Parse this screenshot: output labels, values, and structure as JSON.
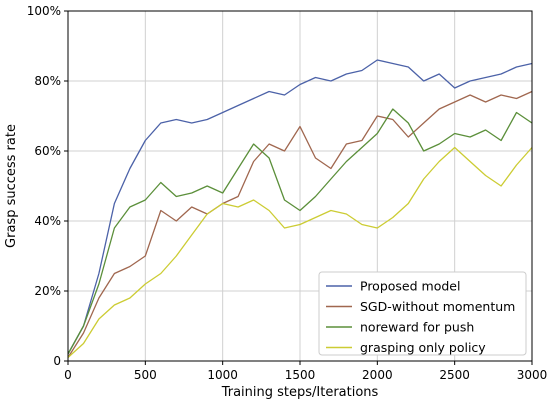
{
  "chart_data": {
    "type": "line",
    "xlabel": "Training steps/Iterations",
    "ylabel": "Grasp success rate",
    "xlim": [
      0,
      3000
    ],
    "ylim": [
      0,
      100
    ],
    "x_ticks": [
      0,
      500,
      1000,
      1500,
      2000,
      2500,
      3000
    ],
    "y_ticks": [
      0,
      20,
      40,
      60,
      80,
      100
    ],
    "x_tick_labels": [
      "0",
      "500",
      "1000",
      "1500",
      "2000",
      "2500",
      "3000"
    ],
    "y_tick_labels": [
      "0",
      "20%",
      "40%",
      "60%",
      "80%",
      "100%"
    ],
    "grid": true,
    "legend_position": "bottom-right",
    "x": [
      0,
      100,
      200,
      300,
      400,
      500,
      600,
      700,
      800,
      900,
      1000,
      1100,
      1200,
      1300,
      1400,
      1500,
      1600,
      1700,
      1800,
      1900,
      2000,
      2100,
      2200,
      2300,
      2400,
      2500,
      2600,
      2700,
      2800,
      2900,
      3000
    ],
    "series": [
      {
        "name": "Proposed model",
        "color": "#4c62a8",
        "values": [
          2,
          10,
          25,
          45,
          55,
          63,
          68,
          69,
          68,
          69,
          71,
          73,
          75,
          77,
          76,
          79,
          81,
          80,
          82,
          83,
          86,
          85,
          84,
          80,
          82,
          78,
          80,
          81,
          82,
          84,
          85
        ]
      },
      {
        "name": "SGD-without momentum",
        "color": "#a0674f",
        "values": [
          1,
          8,
          18,
          25,
          27,
          30,
          43,
          40,
          44,
          42,
          45,
          47,
          57,
          62,
          60,
          67,
          58,
          55,
          62,
          63,
          70,
          69,
          64,
          68,
          72,
          74,
          76,
          74,
          76,
          75,
          77
        ]
      },
      {
        "name": "noreward for push",
        "color": "#5b8f3a",
        "values": [
          2,
          10,
          22,
          38,
          44,
          46,
          51,
          47,
          48,
          50,
          48,
          55,
          62,
          58,
          46,
          43,
          47,
          52,
          57,
          61,
          65,
          72,
          68,
          60,
          62,
          65,
          64,
          66,
          63,
          71,
          68
        ]
      },
      {
        "name": "grasping only policy",
        "color": "#cccc33",
        "values": [
          1,
          5,
          12,
          16,
          18,
          22,
          25,
          30,
          36,
          42,
          45,
          44,
          46,
          43,
          38,
          39,
          41,
          43,
          42,
          39,
          38,
          41,
          45,
          52,
          57,
          61,
          57,
          53,
          50,
          56,
          61
        ]
      }
    ]
  }
}
